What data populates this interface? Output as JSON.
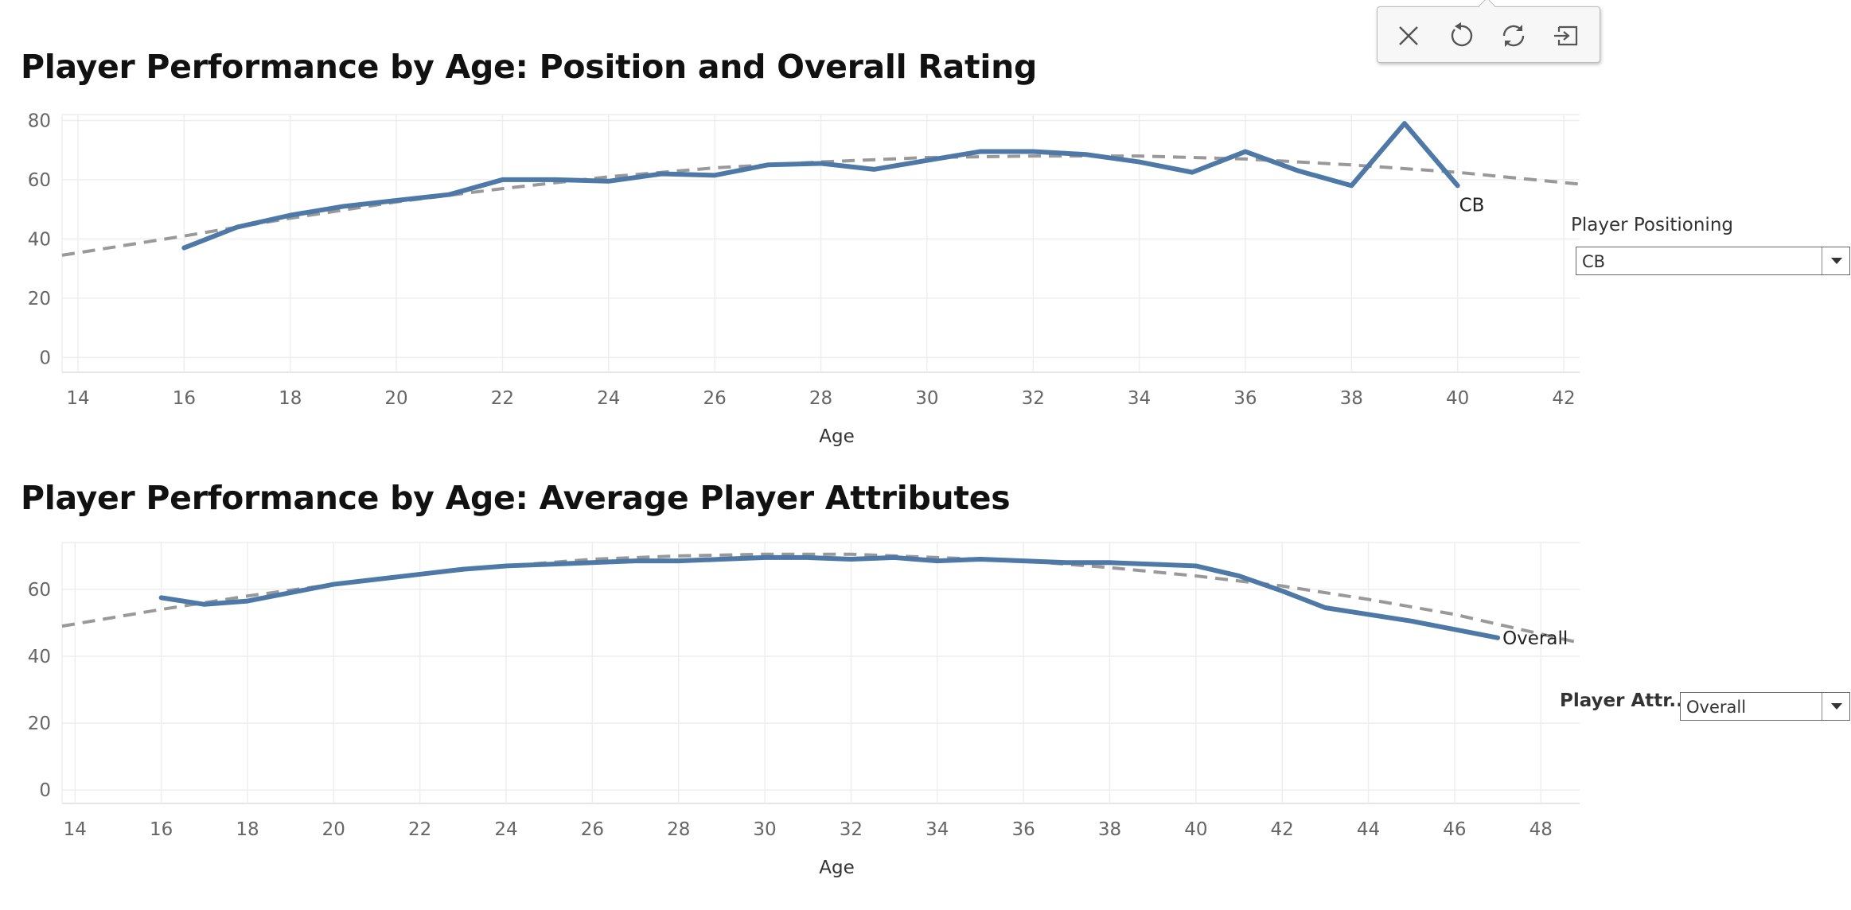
{
  "toolbar": {
    "buttons": [
      {
        "icon": "close-icon"
      },
      {
        "icon": "undo-icon"
      },
      {
        "icon": "refresh-icon"
      },
      {
        "icon": "exit-icon"
      }
    ]
  },
  "filters": {
    "positioning": {
      "label": "Player Positioning",
      "value": "CB"
    },
    "attribute": {
      "label": "Player Attr..",
      "value": "Overall"
    }
  },
  "colors": {
    "series": "#4e79a7",
    "trend": "#999999",
    "grid": "#eeeeee"
  },
  "chart_data": [
    {
      "type": "line",
      "title": "Player Performance by Age: Position and Overall Rating",
      "xlabel": "Age",
      "ylabel": "",
      "xlim": [
        13.7,
        42.3
      ],
      "ylim": [
        -5,
        82
      ],
      "xticks": [
        14,
        16,
        18,
        20,
        22,
        24,
        26,
        28,
        30,
        32,
        34,
        36,
        38,
        40,
        42
      ],
      "yticks": [
        0,
        20,
        40,
        60,
        80
      ],
      "grid": true,
      "series": [
        {
          "name": "CB",
          "x": [
            16,
            17,
            18,
            19,
            20,
            21,
            22,
            23,
            24,
            25,
            26,
            27,
            28,
            29,
            30,
            31,
            32,
            33,
            34,
            35,
            36,
            37,
            38,
            39,
            40
          ],
          "y": [
            37,
            44,
            48,
            51,
            53,
            55,
            60,
            60,
            59.5,
            62,
            61.5,
            65,
            65.5,
            63.5,
            66.5,
            69.5,
            69.5,
            68.5,
            66,
            62.5,
            69.5,
            63,
            58,
            79,
            58
          ]
        }
      ],
      "trend": {
        "x": [
          13.7,
          16,
          18,
          20,
          22,
          24,
          26,
          28,
          30,
          32,
          34,
          36,
          38,
          40,
          42.3
        ],
        "y": [
          34.5,
          41,
          47,
          52.5,
          57,
          61,
          64,
          66,
          67.5,
          68,
          68,
          67,
          65,
          62.5,
          58.5
        ]
      }
    },
    {
      "type": "line",
      "title": "Player Performance by Age:  Average Player Attributes",
      "xlabel": "Age",
      "ylabel": "",
      "xlim": [
        13.7,
        48.9
      ],
      "ylim": [
        -4,
        74
      ],
      "xticks": [
        14,
        16,
        18,
        20,
        22,
        24,
        26,
        28,
        30,
        32,
        34,
        36,
        38,
        40,
        42,
        44,
        46,
        48
      ],
      "yticks": [
        0,
        20,
        40,
        60
      ],
      "grid": true,
      "series": [
        {
          "name": "Overall",
          "x": [
            16,
            17,
            18,
            19,
            20,
            21,
            22,
            23,
            24,
            25,
            26,
            27,
            28,
            29,
            30,
            31,
            32,
            33,
            34,
            35,
            36,
            37,
            38,
            39,
            40,
            41,
            42,
            43,
            44,
            45,
            46,
            47
          ],
          "y": [
            57.5,
            55.5,
            56.5,
            59,
            61.5,
            63,
            64.5,
            66,
            67,
            67.5,
            68,
            68.5,
            68.5,
            69,
            69.5,
            69.5,
            69,
            69.5,
            68.5,
            69,
            68.5,
            68,
            68,
            67.5,
            67,
            64,
            59.5,
            54.5,
            52.5,
            50.5,
            48,
            45.5
          ]
        }
      ],
      "trend": {
        "x": [
          13.7,
          16,
          18,
          20,
          22,
          24,
          26,
          28,
          30,
          32,
          34,
          36,
          38,
          40,
          42,
          44,
          46,
          48.9
        ],
        "y": [
          49,
          54,
          58,
          61.5,
          64.5,
          67,
          69,
          70,
          70.5,
          70.5,
          69.5,
          68.5,
          66.5,
          64,
          61,
          57,
          52.5,
          44
        ]
      }
    }
  ]
}
